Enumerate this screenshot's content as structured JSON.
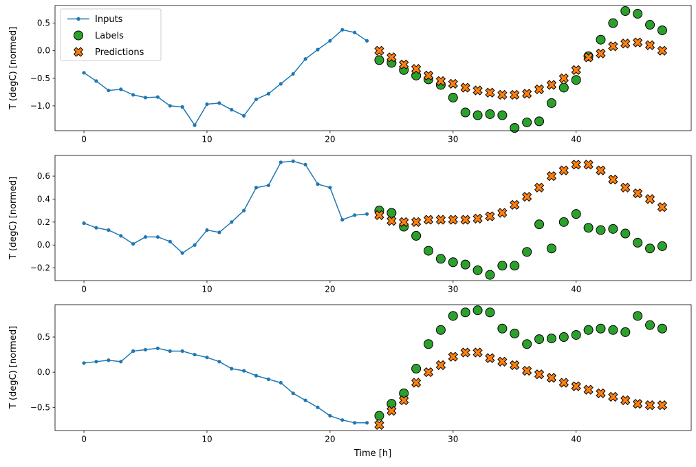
{
  "figure": {
    "background": "#ffffff",
    "colors": {
      "inputs": "#1f77b4",
      "labels": "#2ca02c",
      "predictions": "#ff7f0e",
      "marker_edge": "#000000",
      "legend_border": "#cccccc",
      "spine": "#000000"
    },
    "legend": {
      "position": "upper-left",
      "entries": [
        "Inputs",
        "Labels",
        "Predictions"
      ]
    }
  },
  "chart_data": [
    {
      "type": "line",
      "title": "",
      "ylabel": "T (degC) [normed]",
      "xlabel": "",
      "xlim": [
        -2.35,
        49.35
      ],
      "ylim": [
        -1.45,
        0.82
      ],
      "xticks": [
        0,
        10,
        20,
        30,
        40
      ],
      "xticklabels": [
        "0",
        "10",
        "20",
        "30",
        "40"
      ],
      "yticks": [
        0.5,
        0.0,
        -0.5,
        -1.0
      ],
      "yticklabels": [
        "0.5",
        "0.0",
        "−0.5",
        "−1.0"
      ],
      "grid": false,
      "legend": true,
      "series": [
        {
          "name": "Inputs",
          "type": "line",
          "marker": "dot",
          "color": "#1f77b4",
          "x": [
            0,
            1,
            2,
            3,
            4,
            5,
            6,
            7,
            8,
            9,
            10,
            11,
            12,
            13,
            14,
            15,
            16,
            17,
            18,
            19,
            20,
            21,
            22,
            23
          ],
          "y": [
            -0.4,
            -0.55,
            -0.72,
            -0.7,
            -0.8,
            -0.85,
            -0.84,
            -1.0,
            -1.02,
            -1.35,
            -0.97,
            -0.95,
            -1.07,
            -1.18,
            -0.88,
            -0.78,
            -0.6,
            -0.42,
            -0.15,
            0.02,
            0.18,
            0.38,
            0.33,
            0.18
          ]
        },
        {
          "name": "Labels",
          "type": "scatter",
          "marker": "circle",
          "color": "#2ca02c",
          "edge": "#000000",
          "x": [
            24,
            25,
            26,
            27,
            28,
            29,
            30,
            31,
            32,
            33,
            34,
            35,
            36,
            37,
            38,
            39,
            40,
            41,
            42,
            43,
            44,
            45,
            46,
            47
          ],
          "y": [
            -0.17,
            -0.22,
            -0.35,
            -0.45,
            -0.52,
            -0.62,
            -0.85,
            -1.12,
            -1.17,
            -1.15,
            -1.17,
            -1.4,
            -1.3,
            -1.28,
            -0.95,
            -0.67,
            -0.53,
            -0.1,
            0.2,
            0.5,
            0.72,
            0.67,
            0.47,
            0.37
          ]
        },
        {
          "name": "Predictions",
          "type": "scatter",
          "marker": "X",
          "color": "#ff7f0e",
          "edge": "#000000",
          "x": [
            24,
            25,
            26,
            27,
            28,
            29,
            30,
            31,
            32,
            33,
            34,
            35,
            36,
            37,
            38,
            39,
            40,
            41,
            42,
            43,
            44,
            45,
            46,
            47
          ],
          "y": [
            0.0,
            -0.12,
            -0.25,
            -0.33,
            -0.45,
            -0.55,
            -0.6,
            -0.67,
            -0.72,
            -0.76,
            -0.8,
            -0.8,
            -0.78,
            -0.7,
            -0.62,
            -0.5,
            -0.35,
            -0.12,
            -0.05,
            0.08,
            0.13,
            0.15,
            0.1,
            0.0
          ]
        }
      ]
    },
    {
      "type": "line",
      "title": "",
      "ylabel": "T (degC) [normed]",
      "xlabel": "",
      "xlim": [
        -2.35,
        49.35
      ],
      "ylim": [
        -0.31,
        0.78
      ],
      "xticks": [
        0,
        10,
        20,
        30,
        40
      ],
      "xticklabels": [
        "0",
        "10",
        "20",
        "30",
        "40"
      ],
      "yticks": [
        0.6,
        0.4,
        0.2,
        0.0,
        -0.2
      ],
      "yticklabels": [
        "0.6",
        "0.4",
        "0.2",
        "0.0",
        "−0.2"
      ],
      "grid": false,
      "legend": false,
      "series": [
        {
          "name": "Inputs",
          "type": "line",
          "marker": "dot",
          "color": "#1f77b4",
          "x": [
            0,
            1,
            2,
            3,
            4,
            5,
            6,
            7,
            8,
            9,
            10,
            11,
            12,
            13,
            14,
            15,
            16,
            17,
            18,
            19,
            20,
            21,
            22,
            23
          ],
          "y": [
            0.19,
            0.15,
            0.13,
            0.08,
            0.01,
            0.07,
            0.07,
            0.03,
            -0.07,
            0.0,
            0.13,
            0.11,
            0.2,
            0.3,
            0.5,
            0.52,
            0.72,
            0.73,
            0.7,
            0.53,
            0.5,
            0.22,
            0.26,
            0.27
          ]
        },
        {
          "name": "Labels",
          "type": "scatter",
          "marker": "circle",
          "color": "#2ca02c",
          "edge": "#000000",
          "x": [
            24,
            25,
            26,
            27,
            28,
            29,
            30,
            31,
            32,
            33,
            34,
            35,
            36,
            37,
            38,
            39,
            40,
            41,
            42,
            43,
            44,
            45,
            46,
            47
          ],
          "y": [
            0.3,
            0.28,
            0.16,
            0.08,
            -0.05,
            -0.12,
            -0.15,
            -0.17,
            -0.22,
            -0.26,
            -0.18,
            -0.18,
            -0.06,
            0.18,
            -0.03,
            0.2,
            0.27,
            0.15,
            0.13,
            0.14,
            0.1,
            0.02,
            -0.03,
            -0.01
          ]
        },
        {
          "name": "Predictions",
          "type": "scatter",
          "marker": "X",
          "color": "#ff7f0e",
          "edge": "#000000",
          "x": [
            24,
            25,
            26,
            27,
            28,
            29,
            30,
            31,
            32,
            33,
            34,
            35,
            36,
            37,
            38,
            39,
            40,
            41,
            42,
            43,
            44,
            45,
            46,
            47
          ],
          "y": [
            0.26,
            0.21,
            0.2,
            0.2,
            0.22,
            0.22,
            0.22,
            0.22,
            0.23,
            0.25,
            0.28,
            0.35,
            0.42,
            0.5,
            0.6,
            0.65,
            0.7,
            0.7,
            0.65,
            0.57,
            0.5,
            0.45,
            0.4,
            0.33
          ]
        }
      ]
    },
    {
      "type": "line",
      "title": "",
      "ylabel": "T (degC) [normed]",
      "xlabel": "Time [h]",
      "xlim": [
        -2.35,
        49.35
      ],
      "ylim": [
        -0.83,
        0.96
      ],
      "xticks": [
        0,
        10,
        20,
        30,
        40
      ],
      "xticklabels": [
        "0",
        "10",
        "20",
        "30",
        "40"
      ],
      "yticks": [
        0.5,
        0.0,
        -0.5
      ],
      "yticklabels": [
        "0.5",
        "0.0",
        "−0.5"
      ],
      "grid": false,
      "legend": false,
      "series": [
        {
          "name": "Inputs",
          "type": "line",
          "marker": "dot",
          "color": "#1f77b4",
          "x": [
            0,
            1,
            2,
            3,
            4,
            5,
            6,
            7,
            8,
            9,
            10,
            11,
            12,
            13,
            14,
            15,
            16,
            17,
            18,
            19,
            20,
            21,
            22,
            23
          ],
          "y": [
            0.13,
            0.15,
            0.17,
            0.15,
            0.3,
            0.32,
            0.34,
            0.3,
            0.3,
            0.25,
            0.21,
            0.15,
            0.05,
            0.02,
            -0.05,
            -0.1,
            -0.15,
            -0.3,
            -0.4,
            -0.5,
            -0.62,
            -0.68,
            -0.72,
            -0.72
          ]
        },
        {
          "name": "Labels",
          "type": "scatter",
          "marker": "circle",
          "color": "#2ca02c",
          "edge": "#000000",
          "x": [
            24,
            25,
            26,
            27,
            28,
            29,
            30,
            31,
            32,
            33,
            34,
            35,
            36,
            37,
            38,
            39,
            40,
            41,
            42,
            43,
            44,
            45,
            46,
            47
          ],
          "y": [
            -0.62,
            -0.45,
            -0.3,
            0.05,
            0.4,
            0.6,
            0.8,
            0.85,
            0.88,
            0.85,
            0.62,
            0.55,
            0.4,
            0.47,
            0.48,
            0.5,
            0.53,
            0.6,
            0.62,
            0.6,
            0.57,
            0.8,
            0.67,
            0.62
          ]
        },
        {
          "name": "Predictions",
          "type": "scatter",
          "marker": "X",
          "color": "#ff7f0e",
          "edge": "#000000",
          "x": [
            24,
            25,
            26,
            27,
            28,
            29,
            30,
            31,
            32,
            33,
            34,
            35,
            36,
            37,
            38,
            39,
            40,
            41,
            42,
            43,
            44,
            45,
            46,
            47
          ],
          "y": [
            -0.75,
            -0.55,
            -0.4,
            -0.15,
            0.0,
            0.1,
            0.22,
            0.28,
            0.28,
            0.2,
            0.15,
            0.1,
            0.02,
            -0.03,
            -0.08,
            -0.15,
            -0.2,
            -0.25,
            -0.3,
            -0.35,
            -0.4,
            -0.45,
            -0.47,
            -0.47
          ]
        }
      ]
    }
  ]
}
